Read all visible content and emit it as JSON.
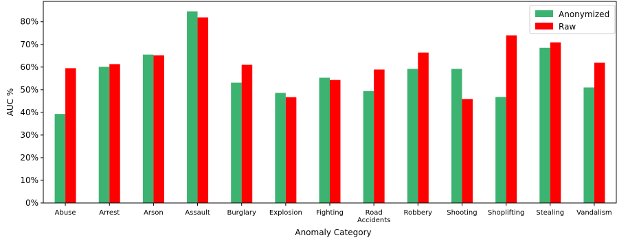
{
  "chart_data": {
    "type": "bar",
    "title": "",
    "xlabel": "Anomaly Category",
    "ylabel": "AUC %",
    "ylim": [
      0,
      89
    ],
    "yticks": [
      0,
      10,
      20,
      30,
      40,
      50,
      60,
      70,
      80
    ],
    "ytick_format": "%",
    "legend_position": "top-right",
    "grid": false,
    "categories": [
      "Abuse",
      "Arrest",
      "Arson",
      "Assault",
      "Burglary",
      "Explosion",
      "Fighting",
      "Road\nAccidents",
      "Robbery",
      "Shooting",
      "Shoplifting",
      "Stealing",
      "Vandalism"
    ],
    "series": [
      {
        "name": "Anonymized",
        "color": "#3cb371",
        "values": [
          39.3,
          60.1,
          65.5,
          84.6,
          53.1,
          48.6,
          55.3,
          49.4,
          59.2,
          59.2,
          46.8,
          68.5,
          51.0
        ]
      },
      {
        "name": "Raw",
        "color": "#ff0000",
        "values": [
          59.5,
          61.3,
          65.2,
          81.9,
          61.0,
          46.7,
          54.3,
          58.9,
          66.4,
          45.9,
          74.0,
          70.9,
          61.9
        ]
      }
    ]
  }
}
